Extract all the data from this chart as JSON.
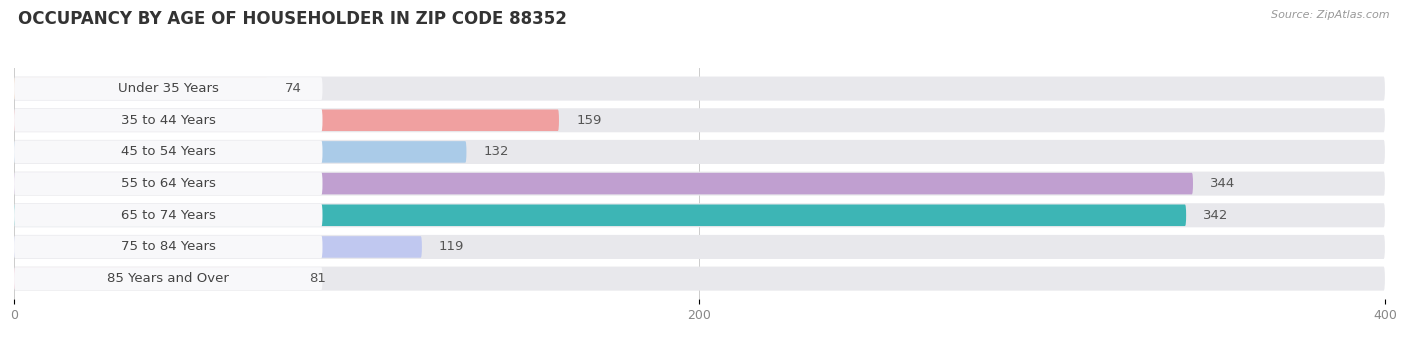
{
  "title": "OCCUPANCY BY AGE OF HOUSEHOLDER IN ZIP CODE 88352",
  "source": "Source: ZipAtlas.com",
  "categories": [
    "Under 35 Years",
    "35 to 44 Years",
    "45 to 54 Years",
    "55 to 64 Years",
    "65 to 74 Years",
    "75 to 84 Years",
    "85 Years and Over"
  ],
  "values": [
    74,
    159,
    132,
    344,
    342,
    119,
    81
  ],
  "bar_colors": [
    "#f5c8a0",
    "#f0a0a0",
    "#aacbe8",
    "#c09fd0",
    "#3db5b5",
    "#c0c8f0",
    "#f8b8c8"
  ],
  "xlim": [
    0,
    400
  ],
  "xticks": [
    0,
    200,
    400
  ],
  "title_fontsize": 12,
  "label_fontsize": 9.5,
  "value_fontsize": 9.5,
  "background_color": "#ffffff",
  "bar_bg_color": "#e8e8ec",
  "label_bg_color": "#f5f5f7"
}
